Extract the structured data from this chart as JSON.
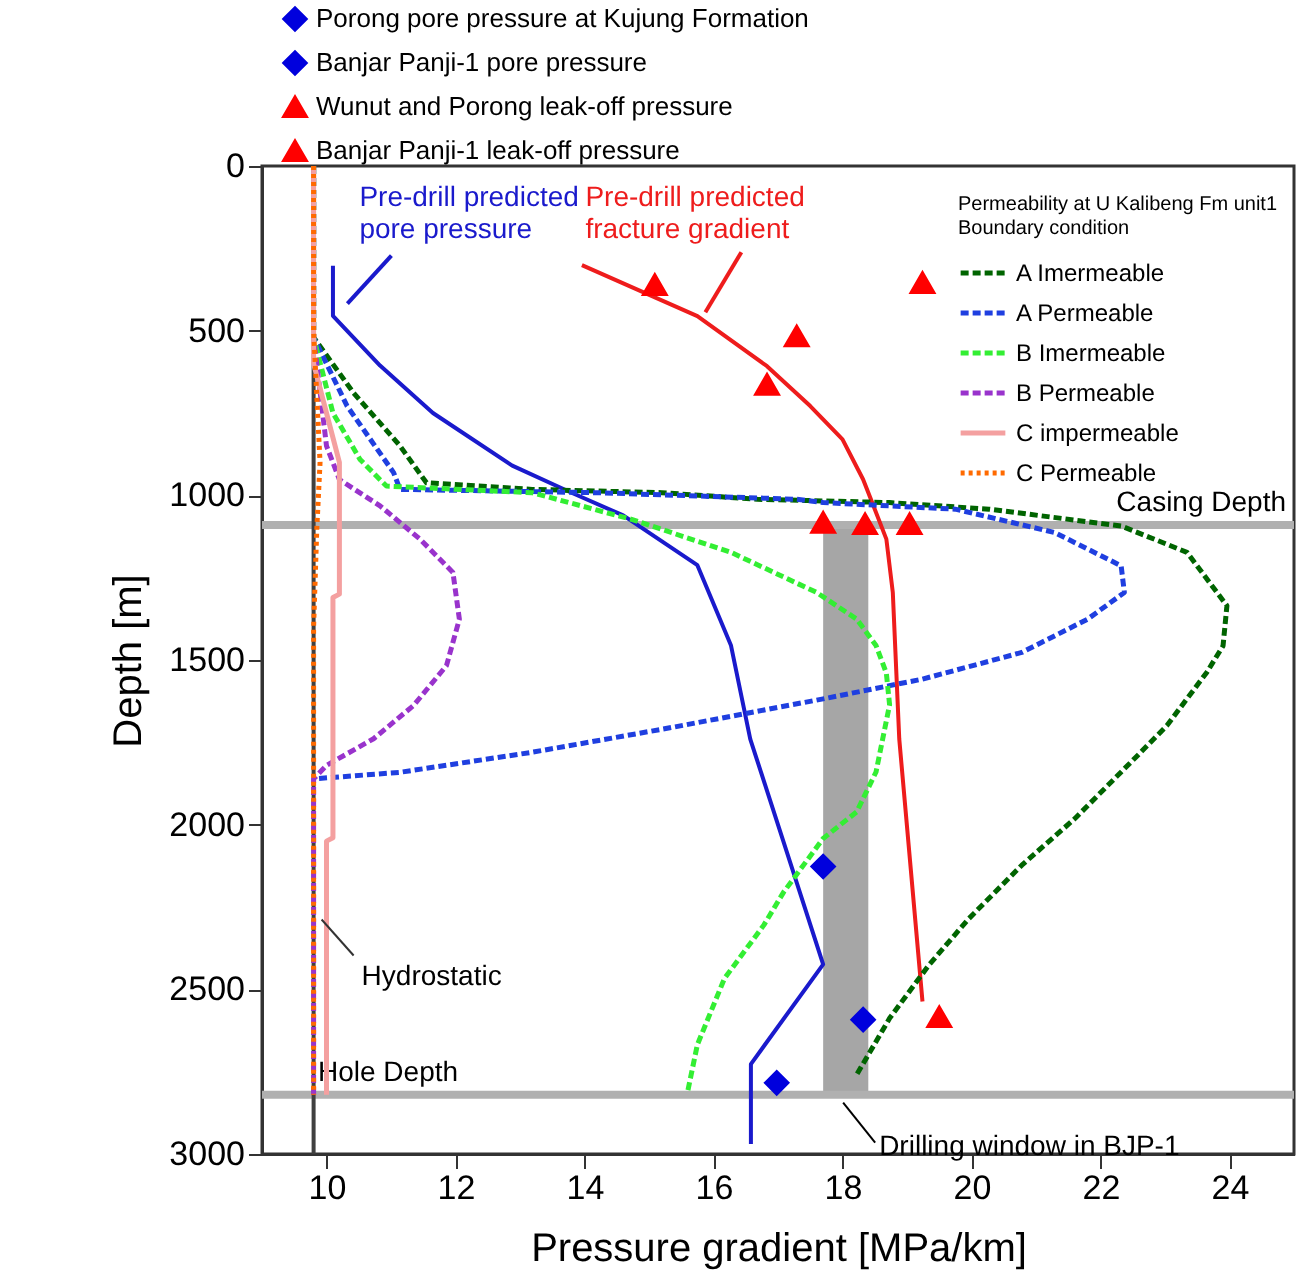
{
  "chart_data": {
    "type": "line",
    "xlabel": "Pressure gradient [MPa/km]",
    "ylabel": "Depth [m]",
    "legend_title": "Permeability at U Kalibeng Fm unit1 Boundary condition",
    "legend": "top right",
    "grid": false,
    "xlim": [
      9,
      25
    ],
    "xticks": [
      10,
      12,
      14,
      16,
      18,
      20,
      22,
      24
    ],
    "ylim": [
      3000,
      0
    ],
    "yticks": [
      0,
      500,
      1000,
      1500,
      2000,
      2500,
      3000
    ],
    "series": [
      {
        "type": "line",
        "color": "#404040",
        "line_style": "solid",
        "x": [
          9.8,
          9.8
        ],
        "values": [
          0,
          3000
        ]
      },
      {
        "type": "line",
        "name": "A Imermeable",
        "color": "#006400",
        "line_style": "dashed",
        "x": [
          9.8,
          9.8,
          10.42,
          11.14,
          11.55,
          13.19,
          15.2,
          16.68,
          18.73,
          20.27,
          22.32,
          23.34,
          23.96,
          23.9,
          23.65,
          23.03,
          22.63,
          21.6,
          20.78,
          19.96,
          19.34,
          18.73,
          18.22
        ],
        "values": [
          0,
          520,
          689,
          850,
          962,
          982,
          992,
          1012,
          1022,
          1042,
          1093,
          1173,
          1335,
          1457,
          1537,
          1699,
          1779,
          1982,
          2123,
          2285,
          2426,
          2588,
          2759
        ]
      },
      {
        "type": "line",
        "name": "A Permeable",
        "color": "#1f3fe0",
        "line_style": "dashed",
        "x": [
          9.8,
          9.8,
          10.32,
          11.04,
          11.14,
          14.2,
          17.29,
          17.7,
          19.75,
          21.29,
          22.32,
          22.37,
          21.8,
          20.78,
          19.24,
          17.7,
          15.24,
          13.19,
          11.14,
          9.8
        ],
        "values": [
          0,
          520,
          729,
          931,
          982,
          992,
          1012,
          1022,
          1042,
          1113,
          1214,
          1295,
          1376,
          1477,
          1558,
          1618,
          1709,
          1780,
          1841,
          1861
        ]
      },
      {
        "type": "line",
        "name": "B Imermeable",
        "color": "#33ee33",
        "line_style": "dashed",
        "x": [
          9.8,
          9.8,
          10.1,
          10.52,
          10.93,
          13.19,
          14.73,
          16.27,
          17.6,
          18.22,
          18.52,
          18.68,
          18.73,
          18.52,
          18.22,
          17.7,
          17.09,
          16.78,
          16.17,
          15.75,
          15.6
        ],
        "values": [
          0,
          520,
          750,
          891,
          972,
          992,
          1073,
          1173,
          1295,
          1376,
          1456,
          1540,
          1636,
          1840,
          1961,
          2042,
          2204,
          2305,
          2467,
          2668,
          2810
        ]
      },
      {
        "type": "line",
        "name": "B Permeable",
        "color": "#9933cc",
        "line_style": "dashed",
        "x": [
          9.8,
          9.8,
          10.0,
          10.2,
          10.83,
          11.45,
          11.96,
          12.06,
          11.86,
          11.35,
          10.73,
          10.0,
          9.8,
          9.8
        ],
        "values": [
          0,
          520,
          850,
          952,
          1032,
          1133,
          1234,
          1376,
          1517,
          1638,
          1739,
          1820,
          1861,
          2820
        ]
      },
      {
        "type": "line",
        "name": "C impermeable",
        "color": "#f4a0a0",
        "line_style": "solid",
        "x": [
          9.8,
          9.8,
          10.0,
          10.2,
          10.2,
          10.1,
          10.1,
          10.0,
          10.0
        ],
        "values": [
          0,
          600,
          750,
          900,
          1300,
          1310,
          2040,
          2050,
          2820
        ]
      },
      {
        "type": "line",
        "name": "C Permeable",
        "color": "#ff6a00",
        "line_style": "dotted",
        "x": [
          9.8,
          9.8,
          9.85,
          9.9,
          9.85,
          9.8,
          9.8
        ],
        "values": [
          0,
          500,
          700,
          900,
          1100,
          1400,
          2820
        ]
      },
      {
        "type": "line",
        "color": "#1a1acc",
        "line_style": "solid",
        "x": [
          10.1,
          10.1,
          10.83,
          11.65,
          12.88,
          13.8,
          14.6,
          15.75,
          16.27,
          16.57,
          17.7,
          16.58,
          16.58
        ],
        "values": [
          303,
          455,
          606,
          750,
          910,
          992,
          1061,
          1212,
          1455,
          1740,
          2424,
          2727,
          2970
        ]
      },
      {
        "type": "line",
        "color": "#ee1c1c",
        "line_style": "solid",
        "x": [
          13.96,
          15.75,
          16.83,
          17.5,
          18.0,
          18.32,
          18.46,
          18.68,
          18.78,
          18.88,
          19.24
        ],
        "values": [
          301,
          456,
          608,
          729,
          830,
          952,
          1022,
          1133,
          1295,
          1740,
          2537
        ]
      },
      {
        "type": "scatter",
        "name": "Porong pore pressure at Kujung Formation",
        "color": "#0000dd",
        "marker": "diamond",
        "x": [
          18.32
        ],
        "values": [
          2592
        ]
      },
      {
        "type": "scatter",
        "name": "Banjar Panji-1 pore pressure",
        "color": "#0000dd",
        "marker": "diamond",
        "x": [
          17.7,
          16.98
        ],
        "values": [
          2127,
          2784
        ]
      },
      {
        "type": "scatter",
        "name": "Wunut and Porong leak-off pressure",
        "color": "#ff0000",
        "marker": "triangle",
        "x": [
          19.24,
          17.29,
          19.5
        ],
        "values": [
          355,
          517,
          2584
        ]
      },
      {
        "type": "scatter",
        "name": "Banjar Panji-1 leak-off pressure",
        "color": "#ff0000",
        "marker": "triangle",
        "x": [
          15.09,
          16.83,
          17.7,
          18.35,
          19.04
        ],
        "values": [
          361,
          664,
          1083,
          1087,
          1087
        ]
      }
    ],
    "ref_lines": [
      {
        "axis": "y",
        "value": 1090,
        "label": "Casing Depth",
        "color": "#b0b0b0"
      },
      {
        "axis": "y",
        "value": 2820,
        "label": "Hole Depth",
        "color": "#b0b0b0"
      }
    ],
    "bands": [
      {
        "axis": "x",
        "from": 17.7,
        "to": 18.4,
        "label": "Drilling window in BJP-1",
        "color": "#a6a6a6"
      }
    ],
    "annotations": [
      {
        "text": "Pre-drill predicted pore pressure",
        "x": 10.2,
        "y": 430
      },
      {
        "text": "Pre-drill predicted fracture gradient",
        "x": 15.75,
        "y": 456
      },
      {
        "text": "Hydrostatic",
        "x": 9.8,
        "y": 2300
      }
    ]
  }
}
